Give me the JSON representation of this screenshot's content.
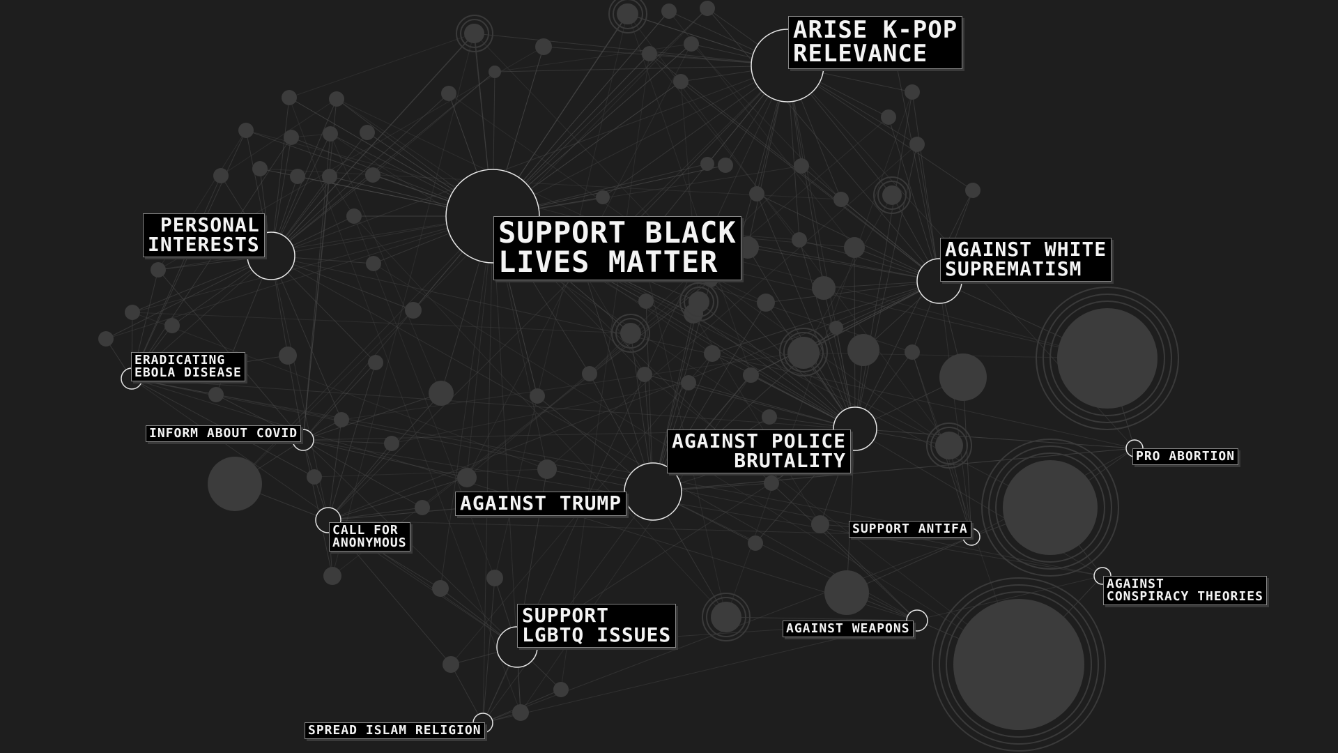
{
  "labels": {
    "support_blm": "SUPPORT BLACK\nLIVES MATTER",
    "arise_kpop": "ARISE K-POP\nRELEVANCE",
    "personal_interests": "PERSONAL\nINTERESTS",
    "against_white_supremacism": "AGAINST WHITE\nSUPREMATISM",
    "eradicating_ebola": "ERADICATING\nEBOLA DISEASE",
    "inform_covid": "INFORM ABOUT COVID",
    "against_police_brutality": "AGAINST POLICE\nBRUTALITY",
    "against_trump": "AGAINST TRUMP",
    "pro_abortion": "PRO ABORTION",
    "call_anonymous": "CALL FOR\nANONYMOUS",
    "support_antifa": "SUPPORT ANTIFA",
    "support_lgbtq": "SUPPORT\nLGBTQ ISSUES",
    "against_weapons": "AGAINST WEAPONS",
    "against_conspiracy": "AGAINST\nCONSPIRACY THEORIES",
    "spread_islam": "SPREAD ISLAM RELIGION"
  },
  "colors": {
    "background": "#1e1e1e",
    "node_fill": "#3c3c3c",
    "edge": "#4a4a4a",
    "hub_stroke": "#e8e8e8",
    "label_bg": "#000000",
    "label_text": "#f4f4f4"
  }
}
